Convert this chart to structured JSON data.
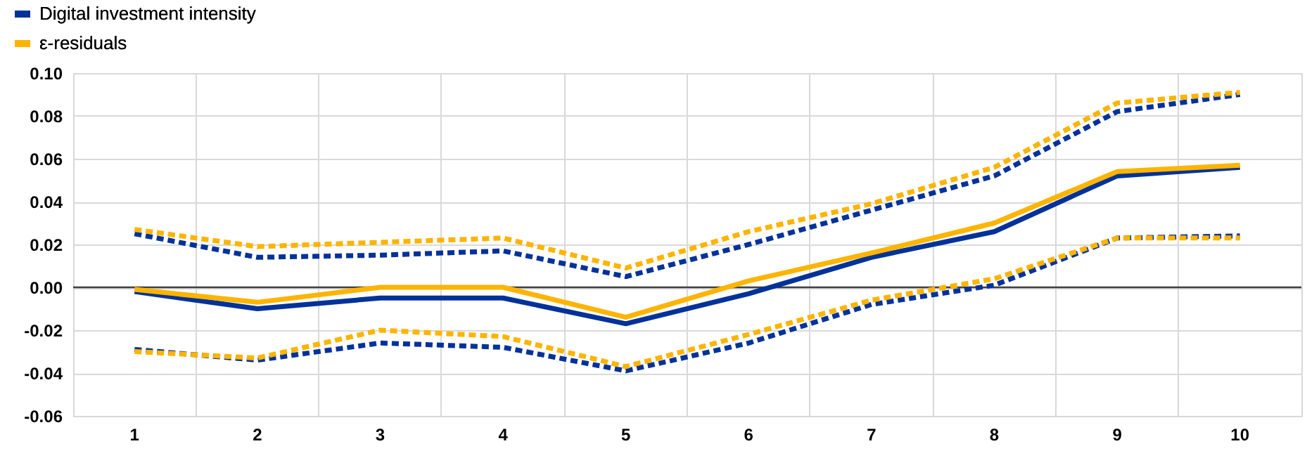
{
  "chart_data": {
    "type": "line",
    "categories": [
      "1",
      "2",
      "3",
      "4",
      "5",
      "6",
      "7",
      "8",
      "9",
      "10"
    ],
    "series": [
      {
        "name": "Digital investment intensity",
        "color": "#003299",
        "line_style": "solid",
        "values": [
          -0.002,
          -0.01,
          -0.005,
          -0.005,
          -0.017,
          -0.003,
          0.014,
          0.026,
          0.052,
          0.056
        ]
      },
      {
        "name": "ε-residuals",
        "color": "#ffb400",
        "line_style": "solid",
        "values": [
          -0.001,
          -0.007,
          0.0,
          0.0,
          -0.014,
          0.003,
          0.016,
          0.03,
          0.054,
          0.057
        ]
      },
      {
        "color": "#003299",
        "line_style": "dashed",
        "values": [
          0.025,
          0.014,
          0.015,
          0.017,
          0.005,
          0.02,
          0.036,
          0.052,
          0.082,
          0.09
        ]
      },
      {
        "color": "#ffb400",
        "line_style": "dashed",
        "values": [
          0.027,
          0.019,
          0.021,
          0.023,
          0.009,
          0.026,
          0.039,
          0.056,
          0.086,
          0.091
        ]
      },
      {
        "color": "#003299",
        "line_style": "dashed",
        "values": [
          -0.029,
          -0.034,
          -0.026,
          -0.028,
          -0.039,
          -0.026,
          -0.008,
          0.001,
          0.023,
          0.024
        ]
      },
      {
        "color": "#ffb400",
        "line_style": "dashed",
        "values": [
          -0.03,
          -0.033,
          -0.02,
          -0.023,
          -0.037,
          -0.022,
          -0.006,
          0.004,
          0.023,
          0.023
        ]
      }
    ],
    "ylim": [
      -0.06,
      0.1
    ],
    "yticks": [
      {
        "value": -0.06,
        "label": "-0.06"
      },
      {
        "value": -0.04,
        "label": "-0.04"
      },
      {
        "value": -0.02,
        "label": "-0.02"
      },
      {
        "value": 0,
        "label": "0.00"
      },
      {
        "value": 0.02,
        "label": "0.02"
      },
      {
        "value": 0.04,
        "label": "0.04"
      },
      {
        "value": 0.06,
        "label": "0.06"
      },
      {
        "value": 0.08,
        "label": "0.08"
      },
      {
        "value": 0.1,
        "label": "0.10"
      }
    ],
    "ref_lines": [
      {
        "axis": "y",
        "value": 0,
        "color": "#404040",
        "line_style": "solid"
      }
    ],
    "grid": true,
    "legend": "top left",
    "marker": "none"
  }
}
